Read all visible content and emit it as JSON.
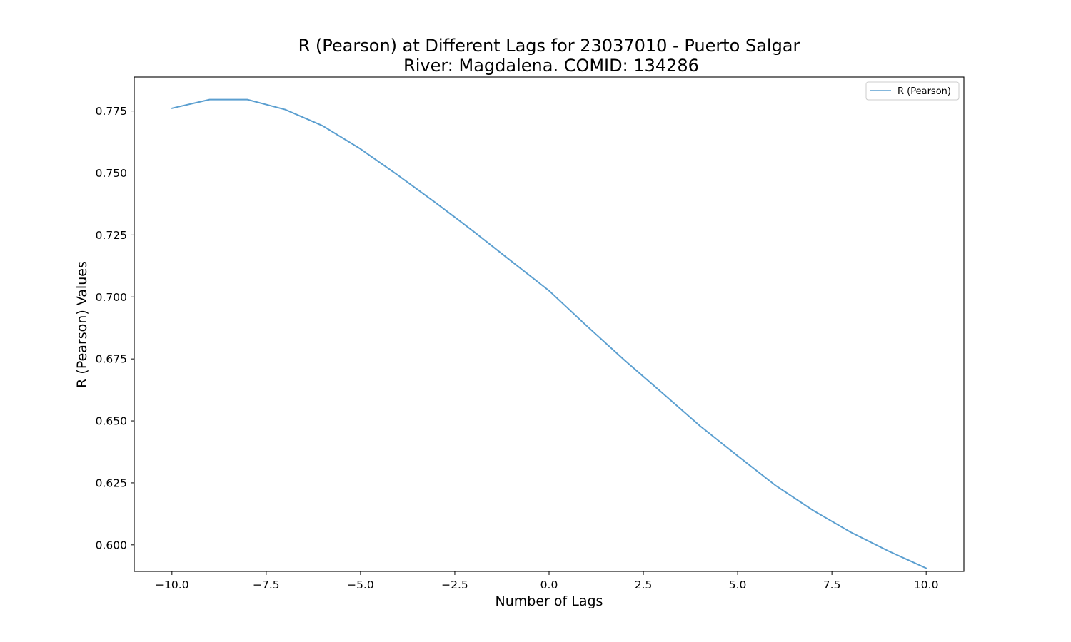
{
  "chart_data": {
    "type": "line",
    "title": "R (Pearson) at Different Lags for 23037010 - Puerto Salgar",
    "subtitle": "River: Magdalena. COMID: 134286",
    "xlabel": "Number of Lags",
    "ylabel": "R (Pearson) Values",
    "xlim": [
      -11,
      11
    ],
    "ylim": [
      0.5893,
      0.7887
    ],
    "x_ticks": [
      -10.0,
      -7.5,
      -5.0,
      -2.5,
      0.0,
      2.5,
      5.0,
      7.5,
      10.0
    ],
    "x_tick_labels": [
      "−10.0",
      "−7.5",
      "−5.0",
      "−2.5",
      "0.0",
      "2.5",
      "5.0",
      "7.5",
      "10.0"
    ],
    "y_ticks": [
      0.6,
      0.625,
      0.65,
      0.675,
      0.7,
      0.725,
      0.75,
      0.775
    ],
    "y_tick_labels": [
      "0.600",
      "0.625",
      "0.650",
      "0.675",
      "0.700",
      "0.725",
      "0.750",
      "0.775"
    ],
    "grid": false,
    "legend_position": "upper right",
    "series": [
      {
        "name": "R (Pearson)",
        "color": "#5b9fd0",
        "x": [
          -10,
          -9,
          -8,
          -7,
          -6,
          -5,
          -4,
          -3,
          -2,
          -1,
          0,
          1,
          2,
          3,
          4,
          5,
          6,
          7,
          8,
          9,
          10
        ],
        "y": [
          0.7761,
          0.7796,
          0.7796,
          0.7756,
          0.769,
          0.7597,
          0.749,
          0.7379,
          0.7264,
          0.7144,
          0.7025,
          0.6883,
          0.6745,
          0.6613,
          0.648,
          0.6359,
          0.624,
          0.6139,
          0.6051,
          0.5975,
          0.5906
        ]
      }
    ]
  }
}
